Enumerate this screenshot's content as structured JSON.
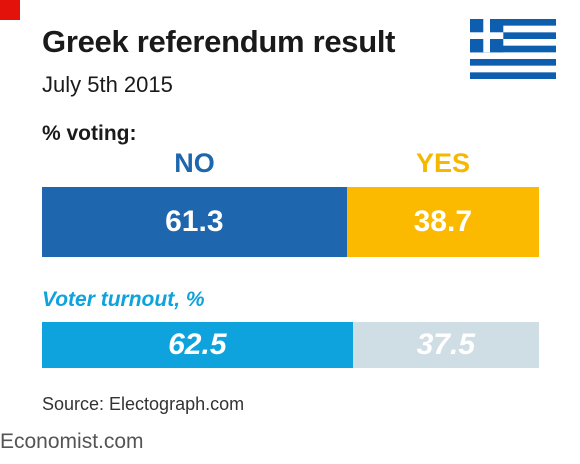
{
  "header": {
    "title": "Greek referendum result",
    "subtitle": "July 5th 2015",
    "flag_icon": "greece-flag-icon"
  },
  "colors": {
    "no": "#1e66ad",
    "yes": "#fbb900",
    "yes_label": "#f5b800",
    "voted": "#0ea3dd",
    "not_voted": "#cfdde4",
    "brand_red": "#e3120b",
    "flag_blue": "#0d5eaf"
  },
  "chart_data": [
    {
      "type": "bar",
      "title": "% voting:",
      "stacked": true,
      "orientation": "horizontal",
      "categories": [
        "NO",
        "YES"
      ],
      "values": [
        61.3,
        38.7
      ],
      "value_labels": [
        "61.3",
        "38.7"
      ],
      "xlim": [
        0,
        100
      ]
    },
    {
      "type": "bar",
      "title": "Voter turnout, %",
      "stacked": true,
      "orientation": "horizontal",
      "values": [
        62.5,
        37.5
      ],
      "value_labels": [
        "62.5",
        "37.5"
      ],
      "xlim": [
        0,
        100
      ]
    }
  ],
  "footer": {
    "source": "Source: Electograph.com",
    "brand": "Economist.com"
  }
}
